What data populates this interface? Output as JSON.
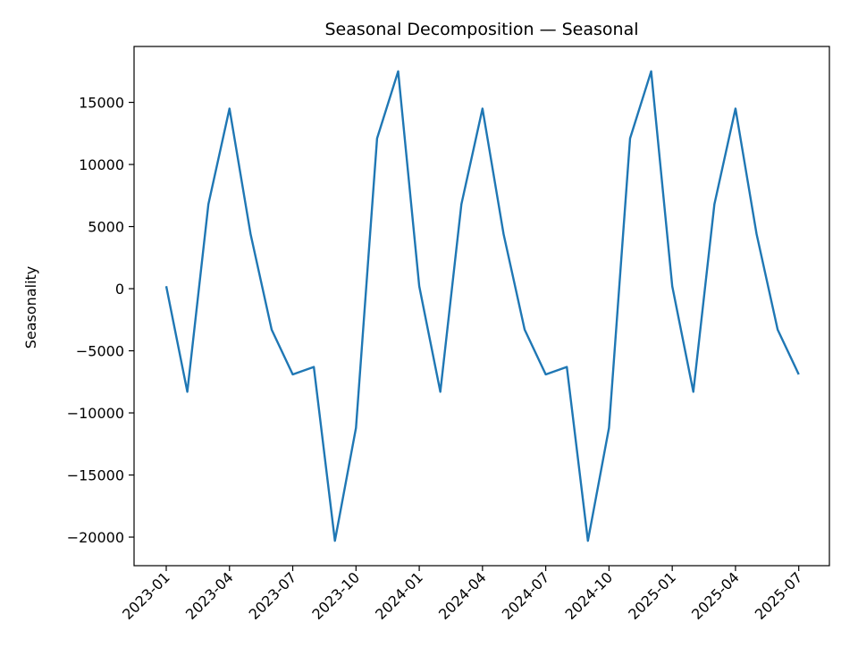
{
  "chart_data": {
    "type": "line",
    "title": "Seasonal Decomposition — Seasonal",
    "xlabel": "",
    "ylabel": "Seasonality",
    "x": [
      "2023-01",
      "2023-02",
      "2023-03",
      "2023-04",
      "2023-05",
      "2023-06",
      "2023-07",
      "2023-08",
      "2023-09",
      "2023-10",
      "2023-11",
      "2023-12",
      "2024-01",
      "2024-02",
      "2024-03",
      "2024-04",
      "2024-05",
      "2024-06",
      "2024-07",
      "2024-08",
      "2024-09",
      "2024-10",
      "2024-11",
      "2024-12",
      "2025-01",
      "2025-02",
      "2025-03",
      "2025-04",
      "2025-05",
      "2025-06",
      "2025-07"
    ],
    "series": [
      {
        "name": "",
        "color": "#1f77b4",
        "values": [
          200,
          -8300,
          6800,
          14500,
          4400,
          -3300,
          -6900,
          -6300,
          -20300,
          -11200,
          12100,
          17500,
          200,
          -8300,
          6800,
          14500,
          4400,
          -3300,
          -6900,
          -6300,
          -20300,
          -11200,
          12100,
          17500,
          200,
          -8300,
          6800,
          14500,
          4400,
          -3300,
          -6900
        ]
      }
    ],
    "x_ticks": [
      "2023-01",
      "2023-04",
      "2023-07",
      "2023-10",
      "2024-01",
      "2024-04",
      "2024-07",
      "2024-10",
      "2025-01",
      "2025-04",
      "2025-07"
    ],
    "y_ticks": [
      -20000,
      -15000,
      -10000,
      -5000,
      0,
      5000,
      10000,
      15000
    ],
    "ylim": [
      -22300,
      19500
    ],
    "grid": false,
    "legend": "none"
  }
}
